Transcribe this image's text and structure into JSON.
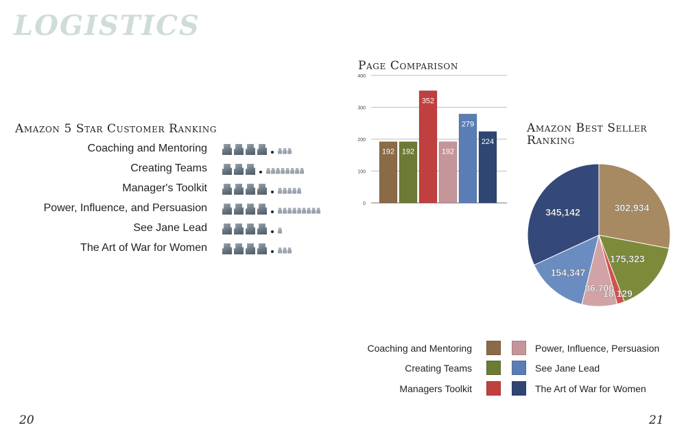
{
  "page_heading": "LOGISTICS",
  "ranking": {
    "title": "Amazon 5 Star Customer Ranking",
    "rows": [
      {
        "name": "Coaching and Mentoring",
        "big": 4,
        "small": 3
      },
      {
        "name": "Creating Teams",
        "big": 3,
        "small": 8
      },
      {
        "name": "Manager's Toolkit",
        "big": 4,
        "small": 5
      },
      {
        "name": "Power, Influence, and Persuasion",
        "big": 4,
        "small": 9
      },
      {
        "name": "See Jane Lead",
        "big": 4,
        "small": 1
      },
      {
        "name": "The Art of War for Women",
        "big": 4,
        "small": 3
      }
    ]
  },
  "chart_data": [
    {
      "type": "bar",
      "title": "Page Comparison",
      "categories": [
        "Coaching and Mentoring",
        "Creating Teams",
        "Managers Toolkit",
        "Power, Influence, Persuasion",
        "See Jane Lead",
        "The Art of War for Women"
      ],
      "values": [
        192,
        192,
        352,
        192,
        279,
        224
      ],
      "value_labels": [
        "192",
        "192",
        "352",
        "192",
        "279",
        "224"
      ],
      "colors": [
        "#8b6a47",
        "#6c7a35",
        "#c0403f",
        "#c4969a",
        "#5a7db5",
        "#2f4672"
      ],
      "ylim": [
        0,
        400
      ],
      "yticks": [
        "0",
        "100",
        "200",
        "300",
        "400"
      ],
      "grid": true
    },
    {
      "type": "pie",
      "title": "Amazon Best Seller Ranking",
      "labels": [
        "Coaching and Mentoring",
        "Creating Teams",
        "Managers Toolkit",
        "Power, Influence, Persuasion",
        "See Jane Lead",
        "The Art of War for Women"
      ],
      "values": [
        302934,
        175323,
        18129,
        86700,
        154347,
        345142
      ],
      "value_labels": [
        "302,934",
        "175,323",
        "18,129",
        "86,700",
        "154,347",
        "345,142"
      ],
      "colors": [
        "#a88a62",
        "#7d8a3a",
        "#d2504e",
        "#d2a3a6",
        "#6a8cc0",
        "#34497a"
      ]
    }
  ],
  "legend": {
    "items": [
      {
        "label": "Coaching and Mentoring",
        "color": "#8b6a47"
      },
      {
        "label": "Creating Teams",
        "color": "#6c7a35"
      },
      {
        "label": "Managers Toolkit",
        "color": "#c0403f"
      },
      {
        "label": "Power, Influence, Persuasion",
        "color": "#c4969a"
      },
      {
        "label": "See Jane Lead",
        "color": "#5a7db5"
      },
      {
        "label": "The Art of War for Women",
        "color": "#2f4672"
      }
    ]
  },
  "page_numbers": {
    "left": "20",
    "right": "21"
  }
}
